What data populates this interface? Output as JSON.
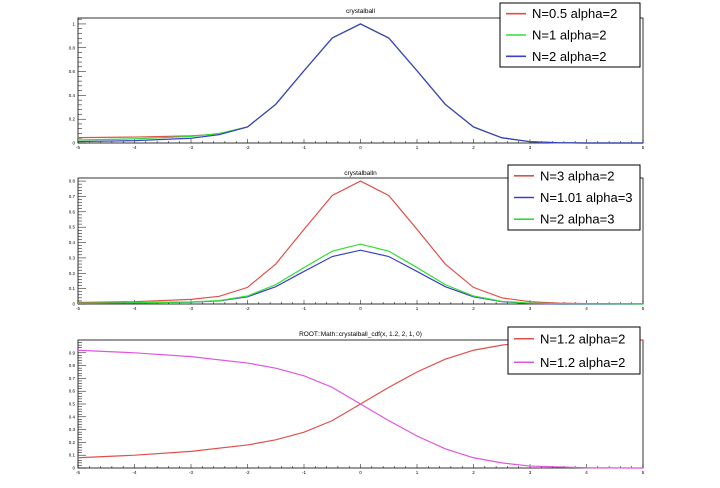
{
  "chart_data": [
    {
      "type": "line",
      "title": "crystalball",
      "xlim": [
        -5,
        5
      ],
      "ylim": [
        0,
        1.05
      ],
      "xticks": [
        -5,
        -4,
        -3,
        -2,
        -1,
        0,
        1,
        2,
        3,
        4,
        5
      ],
      "yticks": [
        0,
        0.2,
        0.4,
        0.6,
        0.8,
        1
      ],
      "ytick_labels": [
        "0",
        "0.2",
        "0.4",
        "0.6",
        "0.8",
        "1"
      ],
      "legend": "top-right",
      "series": [
        {
          "name": "N=0.5 alpha=2",
          "color": "#e0504a",
          "x": [
            -5,
            -4,
            -3,
            -2.5,
            -2,
            -1.5,
            -1,
            -0.5,
            0,
            0.5,
            1,
            1.5,
            2,
            2.5,
            3,
            3.5,
            4,
            5
          ],
          "y": [
            0.045,
            0.05,
            0.06,
            0.075,
            0.135,
            0.325,
            0.607,
            0.882,
            1.0,
            0.882,
            0.607,
            0.325,
            0.135,
            0.044,
            0.011,
            0.002,
            0.0,
            0.0
          ]
        },
        {
          "name": "N=1   alpha=2",
          "color": "#33dd33",
          "x": [
            -5,
            -4,
            -3,
            -2.5,
            -2,
            -1.5,
            -1,
            -0.5,
            0,
            0.5,
            1,
            1.5,
            2,
            2.5,
            3,
            3.5,
            4,
            5
          ],
          "y": [
            0.025,
            0.035,
            0.055,
            0.08,
            0.135,
            0.325,
            0.607,
            0.882,
            1.0,
            0.882,
            0.607,
            0.325,
            0.135,
            0.044,
            0.011,
            0.002,
            0.0,
            0.0
          ]
        },
        {
          "name": "N=2   alpha=2",
          "color": "#3b40c8",
          "x": [
            -5,
            -4,
            -3,
            -2.5,
            -2,
            -1.5,
            -1,
            -0.5,
            0,
            0.5,
            1,
            1.5,
            2,
            2.5,
            3,
            3.5,
            4,
            5
          ],
          "y": [
            0.012,
            0.02,
            0.04,
            0.07,
            0.135,
            0.325,
            0.607,
            0.882,
            1.0,
            0.882,
            0.607,
            0.325,
            0.135,
            0.044,
            0.011,
            0.002,
            0.0,
            0.0
          ]
        }
      ]
    },
    {
      "type": "line",
      "title": "crystalballn",
      "xlim": [
        -5,
        5
      ],
      "ylim": [
        0,
        0.82
      ],
      "xticks": [
        -5,
        -4,
        -3,
        -2,
        -1,
        0,
        1,
        2,
        3,
        4,
        5
      ],
      "yticks": [
        0,
        0.1,
        0.2,
        0.3,
        0.4,
        0.5,
        0.6,
        0.7,
        0.8
      ],
      "ytick_labels": [
        "0",
        "0.1",
        "0.2",
        "0.3",
        "0.4",
        "0.5",
        "0.6",
        "0.7",
        "0.8"
      ],
      "legend": "top-right",
      "series": [
        {
          "name": "N=3    alpha=2",
          "color": "#e0504a",
          "x": [
            -5,
            -4,
            -3,
            -2.5,
            -2,
            -1.5,
            -1,
            -0.5,
            0,
            0.5,
            1,
            1.5,
            2,
            2.5,
            3,
            3.5,
            4,
            5
          ],
          "y": [
            0.01,
            0.015,
            0.03,
            0.05,
            0.108,
            0.26,
            0.486,
            0.706,
            0.8,
            0.706,
            0.486,
            0.26,
            0.108,
            0.04,
            0.015,
            0.006,
            0.003,
            0.001
          ]
        },
        {
          "name": "N=1.01 alpha=3",
          "color": "#3b40c8",
          "x": [
            -5,
            -4,
            -3,
            -2.5,
            -2,
            -1.5,
            -1,
            -0.5,
            0,
            0.5,
            1,
            1.5,
            2,
            2.5,
            3,
            3.5,
            4,
            5
          ],
          "y": [
            0.005,
            0.008,
            0.012,
            0.02,
            0.047,
            0.113,
            0.212,
            0.309,
            0.35,
            0.309,
            0.212,
            0.113,
            0.047,
            0.015,
            0.004,
            0.0,
            0.0,
            0.0
          ]
        },
        {
          "name": "N=2    alpha=3",
          "color": "#33dd33",
          "x": [
            -5,
            -4,
            -3,
            -2.5,
            -2,
            -1.5,
            -1,
            -0.5,
            0,
            0.5,
            1,
            1.5,
            2,
            2.5,
            3,
            3.5,
            4,
            5
          ],
          "y": [
            0.005,
            0.008,
            0.013,
            0.022,
            0.052,
            0.126,
            0.237,
            0.344,
            0.39,
            0.344,
            0.237,
            0.126,
            0.052,
            0.017,
            0.006,
            0.003,
            0.002,
            0.001
          ]
        }
      ]
    },
    {
      "type": "line",
      "title": "ROOT::Math::crystalball_cdf(x, 1.2, 2, 1, 0)",
      "xlim": [
        -5,
        5
      ],
      "ylim": [
        0,
        1.0
      ],
      "xticks": [
        -5,
        -4,
        -3,
        -2,
        -1,
        0,
        1,
        2,
        3,
        4,
        5
      ],
      "yticks": [
        0,
        0.1,
        0.2,
        0.3,
        0.4,
        0.5,
        0.6,
        0.7,
        0.8,
        0.9
      ],
      "ytick_labels": [
        "0",
        "0.1",
        "0.2",
        "0.3",
        "0.4",
        "0.5",
        "0.6",
        "0.7",
        "0.8",
        "0.9"
      ],
      "legend": "top-right",
      "series": [
        {
          "name": "N=1.2 alpha=2",
          "color": "#e0504a",
          "x": [
            -5,
            -4,
            -3,
            -2,
            -1.5,
            -1,
            -0.5,
            0,
            0.5,
            1,
            1.5,
            2,
            2.5,
            3,
            4,
            5
          ],
          "y": [
            0.08,
            0.1,
            0.13,
            0.18,
            0.22,
            0.28,
            0.37,
            0.5,
            0.63,
            0.75,
            0.85,
            0.92,
            0.96,
            0.985,
            0.998,
            1.0
          ]
        },
        {
          "name": "N=1.2 alpha=2",
          "color": "#e055e0",
          "x": [
            -5,
            -4,
            -3,
            -2,
            -1.5,
            -1,
            -0.5,
            0,
            0.5,
            1,
            1.5,
            2,
            2.5,
            3,
            4,
            5
          ],
          "y": [
            0.92,
            0.9,
            0.87,
            0.82,
            0.78,
            0.72,
            0.63,
            0.5,
            0.37,
            0.25,
            0.15,
            0.08,
            0.04,
            0.015,
            0.002,
            0.0
          ]
        }
      ]
    }
  ]
}
